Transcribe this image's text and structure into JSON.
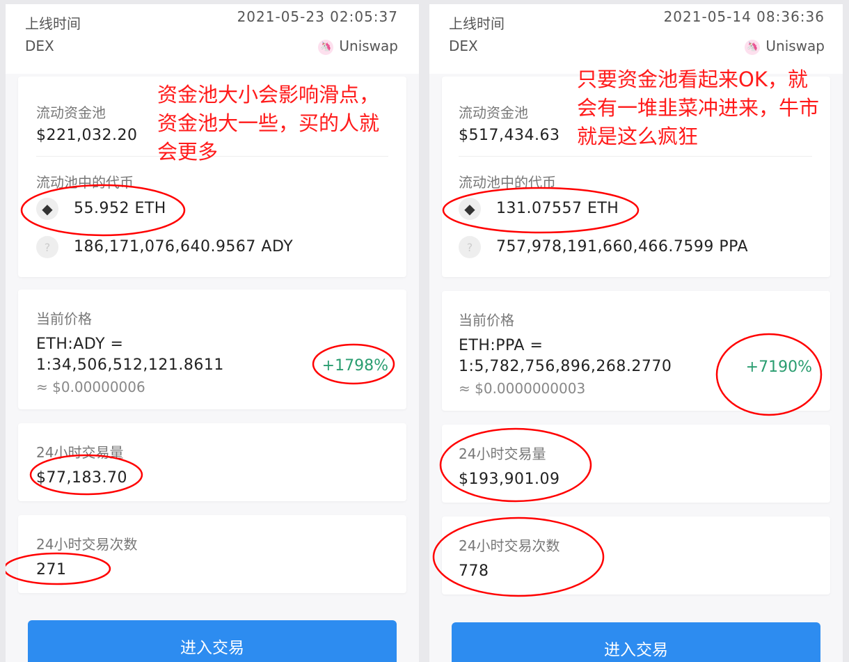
{
  "colors": {
    "accent": "#2d8cf0",
    "positive": "#2a9d70",
    "annotation": "#ff1a1a"
  },
  "labels": {
    "online_time": "上线时间",
    "dex": "DEX",
    "pool": "流动资金池",
    "pool_tokens": "流动池中的代币",
    "price": "当前价格",
    "volume24h": "24小时交易量",
    "tx24h": "24小时交易次数",
    "enter": "进入交易"
  },
  "panels": [
    {
      "online_time": "2021-05-23 02:05:37",
      "dex_name": "Uniswap",
      "pool_value": "$221,032.20",
      "eth_amount": "55.952 ETH",
      "token_amount": "186,171,076,640.9567 ADY",
      "pair": "ETH:ADY =",
      "ratio": "1:34,506,512,121.8611",
      "usd": "≈ $0.00000006",
      "change": "+1798%",
      "volume": "$77,183.70",
      "tx_count": "271",
      "annotation": [
        "资金池大小会影响滑点，",
        "资金池大一些，买的人就",
        "会更多"
      ]
    },
    {
      "online_time": "2021-05-14 08:36:36",
      "dex_name": "Uniswap",
      "pool_value": "$517,434.63",
      "eth_amount": "131.07557 ETH",
      "token_amount": "757,978,191,660,466.7599 PPA",
      "pair": "ETH:PPA =",
      "ratio": "1:5,782,756,896,268.2770",
      "usd": "≈ $0.0000000003",
      "change": "+7190%",
      "volume": "$193,901.09",
      "tx_count": "778",
      "annotation": [
        "只要资金池看起来OK，就",
        "会有一堆韭菜冲进来，牛市",
        "就是这么疯狂"
      ]
    }
  ]
}
